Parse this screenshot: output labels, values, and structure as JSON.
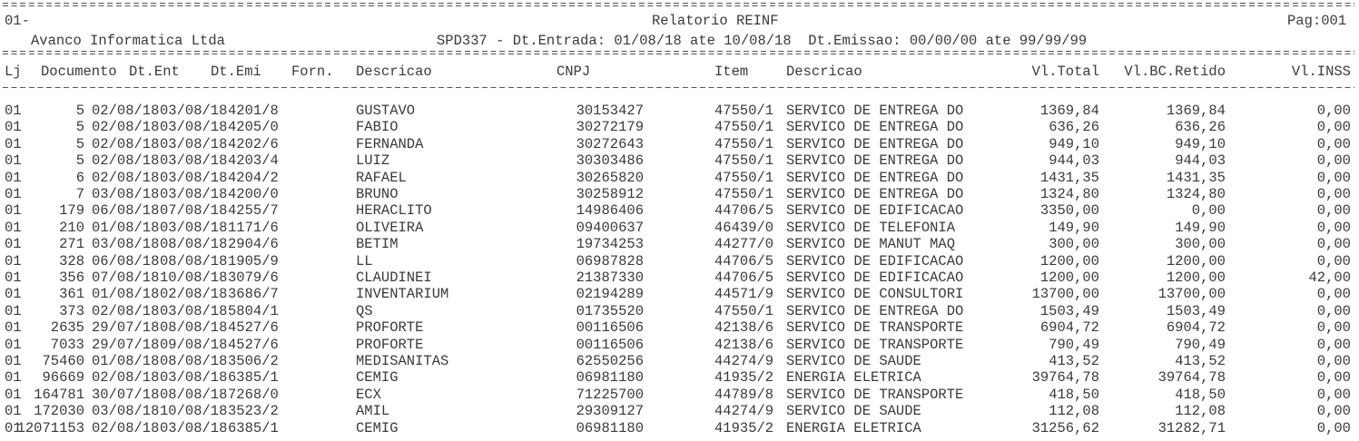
{
  "header": {
    "store_code": "01-",
    "title": "Relatorio REINF",
    "page": "Pag:001",
    "company": "Avanco Informatica Ltda",
    "filter": "SPD337 - Dt.Entrada: 01/08/18 ate 10/08/18  Dt.Emissao: 00/00/00 ate 99/99/99"
  },
  "columns": {
    "lj": "Lj",
    "documento": "Documento",
    "dt_ent": "Dt.Ent",
    "dt_emi": "Dt.Emi",
    "forn": "Forn.",
    "descricao": "Descricao",
    "cnpj": "CNPJ",
    "item": "Item",
    "descricao_item": "Descricao",
    "vl_total": "Vl.Total",
    "vl_bc_retido": "Vl.BC.Retido",
    "vl_inss": "Vl.INSS"
  },
  "rows": [
    [
      "01",
      "5",
      "02/08/18",
      "03/08/18",
      "4201/8",
      "GUSTAVO",
      "30153427",
      "47550/1",
      "SERVICO DE ENTREGA DO",
      "1369,84",
      "1369,84",
      "0,00"
    ],
    [
      "01",
      "5",
      "02/08/18",
      "03/08/18",
      "4205/0",
      "FABIO",
      "30272179",
      "47550/1",
      "SERVICO DE ENTREGA DO",
      "636,26",
      "636,26",
      "0,00"
    ],
    [
      "01",
      "5",
      "02/08/18",
      "03/08/18",
      "4202/6",
      "FERNANDA",
      "30272643",
      "47550/1",
      "SERVICO DE ENTREGA DO",
      "949,10",
      "949,10",
      "0,00"
    ],
    [
      "01",
      "5",
      "02/08/18",
      "03/08/18",
      "4203/4",
      "LUIZ",
      "30303486",
      "47550/1",
      "SERVICO DE ENTREGA DO",
      "944,03",
      "944,03",
      "0,00"
    ],
    [
      "01",
      "6",
      "02/08/18",
      "03/08/18",
      "4204/2",
      "RAFAEL",
      "30265820",
      "47550/1",
      "SERVICO DE ENTREGA DO",
      "1431,35",
      "1431,35",
      "0,00"
    ],
    [
      "01",
      "7",
      "03/08/18",
      "03/08/18",
      "4200/0",
      "BRUNO",
      "30258912",
      "47550/1",
      "SERVICO DE ENTREGA DO",
      "1324,80",
      "1324,80",
      "0,00"
    ],
    [
      "01",
      "179",
      "06/08/18",
      "07/08/18",
      "4255/7",
      "HERACLITO",
      "14986406",
      "44706/5",
      "SERVICO DE EDIFICACAO",
      "3350,00",
      "0,00",
      "0,00"
    ],
    [
      "01",
      "210",
      "01/08/18",
      "03/08/18",
      "1171/6",
      "OLIVEIRA",
      "09400637",
      "46439/0",
      "SERVICO DE TELEFONIA",
      "149,90",
      "149,90",
      "0,00"
    ],
    [
      "01",
      "271",
      "03/08/18",
      "08/08/18",
      "2904/6",
      "BETIM",
      "19734253",
      "44277/0",
      "SERVICO DE MANUT MAQ",
      "300,00",
      "300,00",
      "0,00"
    ],
    [
      "01",
      "328",
      "06/08/18",
      "08/08/18",
      "1905/9",
      "LL",
      "06987828",
      "44706/5",
      "SERVICO DE EDIFICACAO",
      "1200,00",
      "1200,00",
      "0,00"
    ],
    [
      "01",
      "356",
      "07/08/18",
      "10/08/18",
      "3079/6",
      "CLAUDINEI",
      "21387330",
      "44706/5",
      "SERVICO DE EDIFICACAO",
      "1200,00",
      "1200,00",
      "42,00"
    ],
    [
      "01",
      "361",
      "01/08/18",
      "02/08/18",
      "3686/7",
      "INVENTARIUM",
      "02194289",
      "44571/9",
      "SERVICO DE CONSULTORI",
      "13700,00",
      "13700,00",
      "0,00"
    ],
    [
      "01",
      "373",
      "02/08/18",
      "03/08/18",
      "5804/1",
      "QS",
      "01735520",
      "47550/1",
      "SERVICO DE ENTREGA DO",
      "1503,49",
      "1503,49",
      "0,00"
    ],
    [
      "01",
      "2635",
      "29/07/18",
      "08/08/18",
      "4527/6",
      "PROFORTE",
      "00116506",
      "42138/6",
      "SERVICO DE TRANSPORTE",
      "6904,72",
      "6904,72",
      "0,00"
    ],
    [
      "01",
      "7033",
      "29/07/18",
      "09/08/18",
      "4527/6",
      "PROFORTE",
      "00116506",
      "42138/6",
      "SERVICO DE TRANSPORTE",
      "790,49",
      "790,49",
      "0,00"
    ],
    [
      "01",
      "75460",
      "01/08/18",
      "08/08/18",
      "3506/2",
      "MEDISANITAS",
      "62550256",
      "44274/9",
      "SERVICO DE SAUDE",
      "413,52",
      "413,52",
      "0,00"
    ],
    [
      "01",
      "96669",
      "02/08/18",
      "03/08/18",
      "6385/1",
      "CEMIG",
      "06981180",
      "41935/2",
      "ENERGIA ELETRICA",
      "39764,78",
      "39764,78",
      "0,00"
    ],
    [
      "01",
      "164781",
      "30/07/18",
      "08/08/18",
      "7268/0",
      "ECX",
      "71225700",
      "44789/8",
      "SERVICO DE TRANSPORTE",
      "418,50",
      "418,50",
      "0,00"
    ],
    [
      "01",
      "172030",
      "03/08/18",
      "10/08/18",
      "3523/2",
      "AMIL",
      "29309127",
      "44274/9",
      "SERVICO DE SAUDE",
      "112,08",
      "112,08",
      "0,00"
    ],
    [
      "01",
      "12071153",
      "02/08/18",
      "03/08/18",
      "6385/1",
      "CEMIG",
      "06981180",
      "41935/2",
      "ENERGIA ELETRICA",
      "31256,62",
      "31282,71",
      "0,00"
    ]
  ]
}
